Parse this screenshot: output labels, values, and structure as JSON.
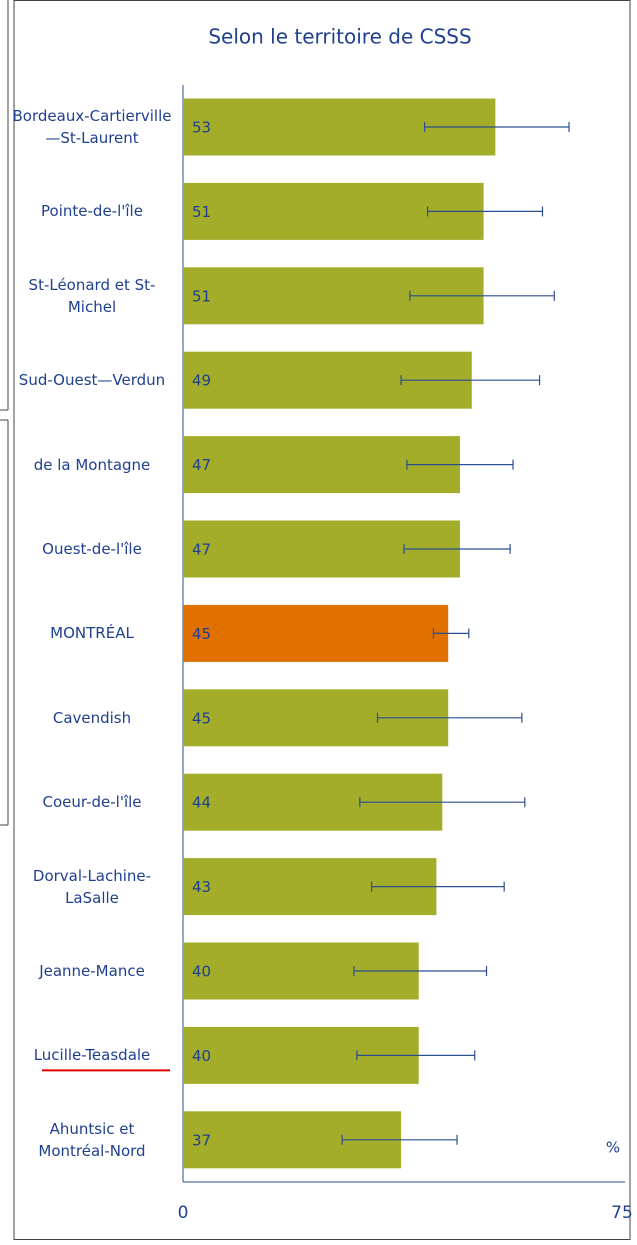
{
  "chart_data": {
    "type": "hbar",
    "title": "Selon le territoire de CSSS",
    "x_label": "%",
    "categories": [
      "Bordeaux-Cartierville—St-Laurent",
      "Pointe-de-l'île",
      "St-Léonard et St-Michel",
      "Sud-Ouest—Verdun",
      "de la Montagne",
      "Ouest-de-l'île",
      "MONTRÉAL",
      "Cavendish",
      "Coeur-de-l'île",
      "Dorval-Lachine-LaSalle",
      "Jeanne-Mance",
      "Lucille-Teasdale",
      "Ahuntsic et Montréal-Nord"
    ],
    "values": [
      53,
      51,
      51,
      49,
      47,
      47,
      45,
      45,
      44,
      43,
      40,
      40,
      37
    ],
    "ci_low": [
      41,
      41.5,
      38.5,
      37,
      38,
      37.5,
      42.5,
      33,
      30,
      32,
      29,
      29.5,
      27
    ],
    "ci_high": [
      65.5,
      61,
      63,
      60.5,
      56,
      55.5,
      48.5,
      57.5,
      58,
      54.5,
      51.5,
      49.5,
      46.5
    ],
    "colors": [
      "#a3ad2a",
      "#a3ad2a",
      "#a3ad2a",
      "#a3ad2a",
      "#a3ad2a",
      "#a3ad2a",
      "#e07000",
      "#a3ad2a",
      "#a3ad2a",
      "#a3ad2a",
      "#a3ad2a",
      "#a3ad2a",
      "#a3ad2a"
    ],
    "underline_index": 11,
    "xlim": [
      0,
      75
    ],
    "xticks": [
      0,
      75
    ]
  }
}
